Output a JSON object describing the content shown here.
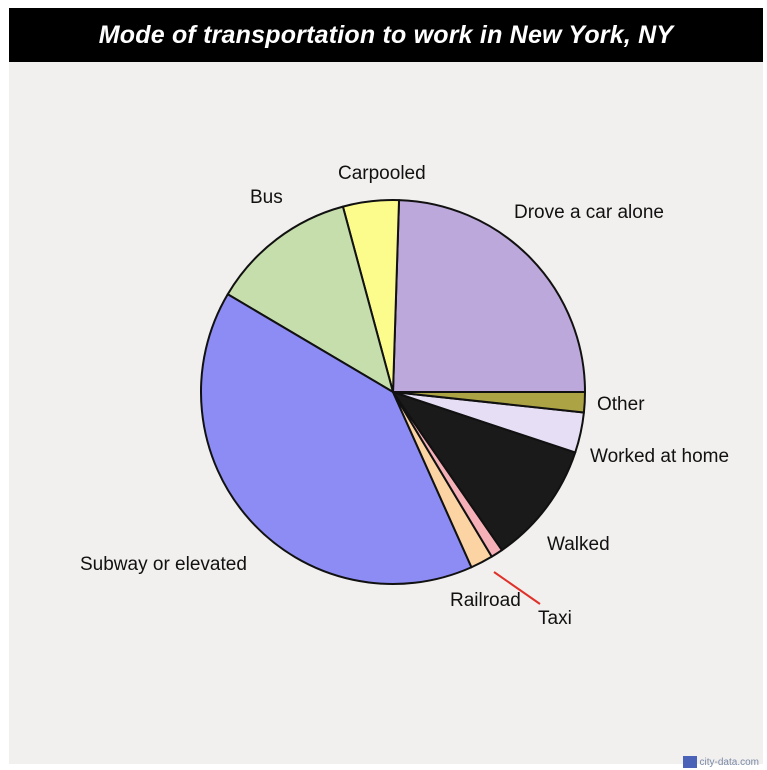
{
  "chart_data": {
    "type": "pie",
    "title": "Mode of transportation to work in New York, NY",
    "start_angle_deg": 0,
    "direction": "counterclockwise",
    "slices": [
      {
        "label": "Drove a car alone",
        "value": 24.5,
        "color": "#bda8dc"
      },
      {
        "label": "Carpooled",
        "value": 4.7,
        "color": "#fcfc8c"
      },
      {
        "label": "Bus",
        "value": 12.3,
        "color": "#c5deac"
      },
      {
        "label": "Subway or elevated",
        "value": 40.2,
        "color": "#8c8cf4"
      },
      {
        "label": "Railroad",
        "value": 1.9,
        "color": "#fcd4a4"
      },
      {
        "label": "Taxi",
        "value": 1.0,
        "color": "#f6b0b8"
      },
      {
        "label": "Walked",
        "value": 10.3,
        "color": "#1a1a1a"
      },
      {
        "label": "Worked at home",
        "value": 3.4,
        "color": "#e6def4"
      },
      {
        "label": "Other",
        "value": 1.7,
        "color": "#aca444"
      }
    ]
  },
  "watermark": "city-data.com"
}
